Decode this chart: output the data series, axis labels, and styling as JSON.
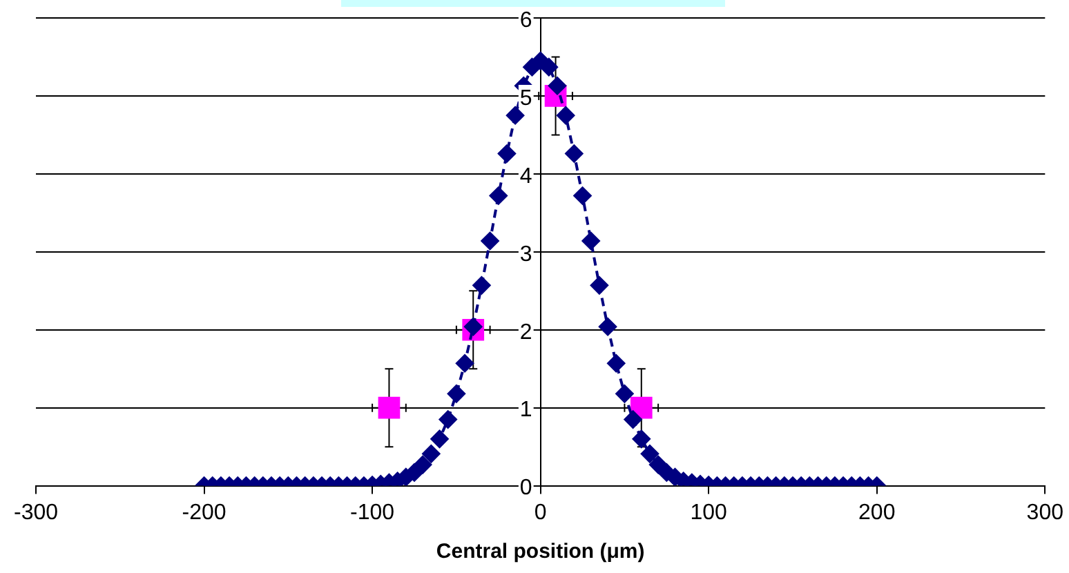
{
  "chart_data": {
    "type": "line",
    "xlabel": "Central position (μm)",
    "xlim": [
      -300,
      300
    ],
    "xticks": [
      -300,
      -200,
      -100,
      0,
      100,
      200,
      300
    ],
    "ylim": [
      0,
      6
    ],
    "yticks": [
      0,
      1,
      2,
      3,
      4,
      5,
      6
    ],
    "grid": "y",
    "legend": false,
    "series": [
      {
        "type": "line",
        "color": "#000080",
        "marker": "diamond",
        "line_style": "dashed",
        "x": [
          -200,
          -195,
          -190,
          -185,
          -180,
          -175,
          -170,
          -165,
          -160,
          -155,
          -150,
          -145,
          -140,
          -135,
          -130,
          -125,
          -120,
          -115,
          -110,
          -105,
          -100,
          -95,
          -90,
          -85,
          -80,
          -75,
          -70,
          -65,
          -60,
          -55,
          -50,
          -45,
          -40,
          -35,
          -30,
          -25,
          -20,
          -15,
          -10,
          -5,
          0,
          5,
          10,
          15,
          20,
          25,
          30,
          35,
          40,
          45,
          50,
          55,
          60,
          65,
          70,
          75,
          80,
          85,
          90,
          95,
          100,
          105,
          110,
          115,
          120,
          125,
          130,
          135,
          140,
          145,
          150,
          155,
          160,
          165,
          170,
          175,
          180,
          185,
          190,
          195,
          200
        ],
        "values": [
          0,
          0,
          0,
          0,
          0,
          0,
          0,
          0,
          0,
          0,
          0,
          0,
          0,
          0,
          0,
          0,
          0,
          0,
          0,
          0,
          0.01,
          0.02,
          0.04,
          0.06,
          0.11,
          0.17,
          0.27,
          0.41,
          0.6,
          0.85,
          1.18,
          1.57,
          2.04,
          2.57,
          3.14,
          3.72,
          4.26,
          4.75,
          5.13,
          5.37,
          5.45,
          5.37,
          5.13,
          4.75,
          4.26,
          3.72,
          3.14,
          2.57,
          2.04,
          1.57,
          1.18,
          0.85,
          0.6,
          0.41,
          0.27,
          0.17,
          0.11,
          0.06,
          0.04,
          0.02,
          0.01,
          0,
          0,
          0,
          0,
          0,
          0,
          0,
          0,
          0,
          0,
          0,
          0,
          0,
          0,
          0,
          0,
          0,
          0,
          0,
          0
        ]
      },
      {
        "type": "scatter",
        "color": "#ff00ff",
        "marker": "square",
        "x": [
          -90,
          -40,
          9,
          60
        ],
        "values": [
          1,
          2,
          5,
          1
        ],
        "errors": [
          0.5,
          0.5,
          0.5,
          0.5
        ],
        "xerrors": [
          10,
          10,
          10,
          10
        ]
      }
    ]
  }
}
